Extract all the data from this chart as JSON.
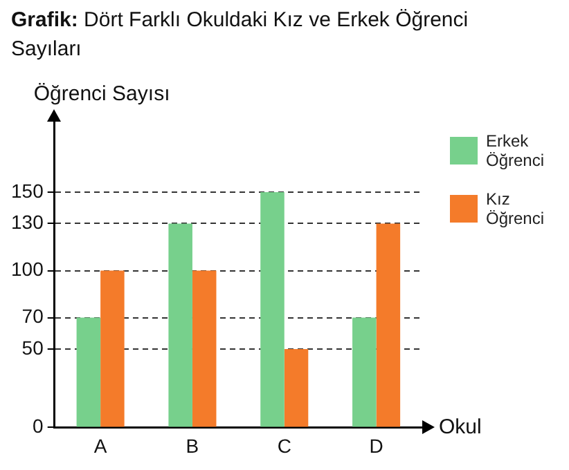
{
  "chart_data": {
    "type": "bar",
    "title": "Grafik: Dört Farklı Okuldaki Kız ve Erkek Öğrenci Sayıları",
    "ylabel": "Öğrenci Sayısı",
    "xlabel": "Okul",
    "categories": [
      "A",
      "B",
      "C",
      "D"
    ],
    "series": [
      {
        "name": "Erkek Öğrenci",
        "color": "#77d08c",
        "values": [
          70,
          130,
          150,
          70
        ]
      },
      {
        "name": "Kız Öğrenci",
        "color": "#f47b2a",
        "values": [
          100,
          100,
          50,
          130
        ]
      }
    ],
    "ylim": [
      0,
      195
    ],
    "yticks": [
      0,
      50,
      70,
      100,
      130,
      150
    ],
    "grid": "y",
    "legend": "top right"
  }
}
